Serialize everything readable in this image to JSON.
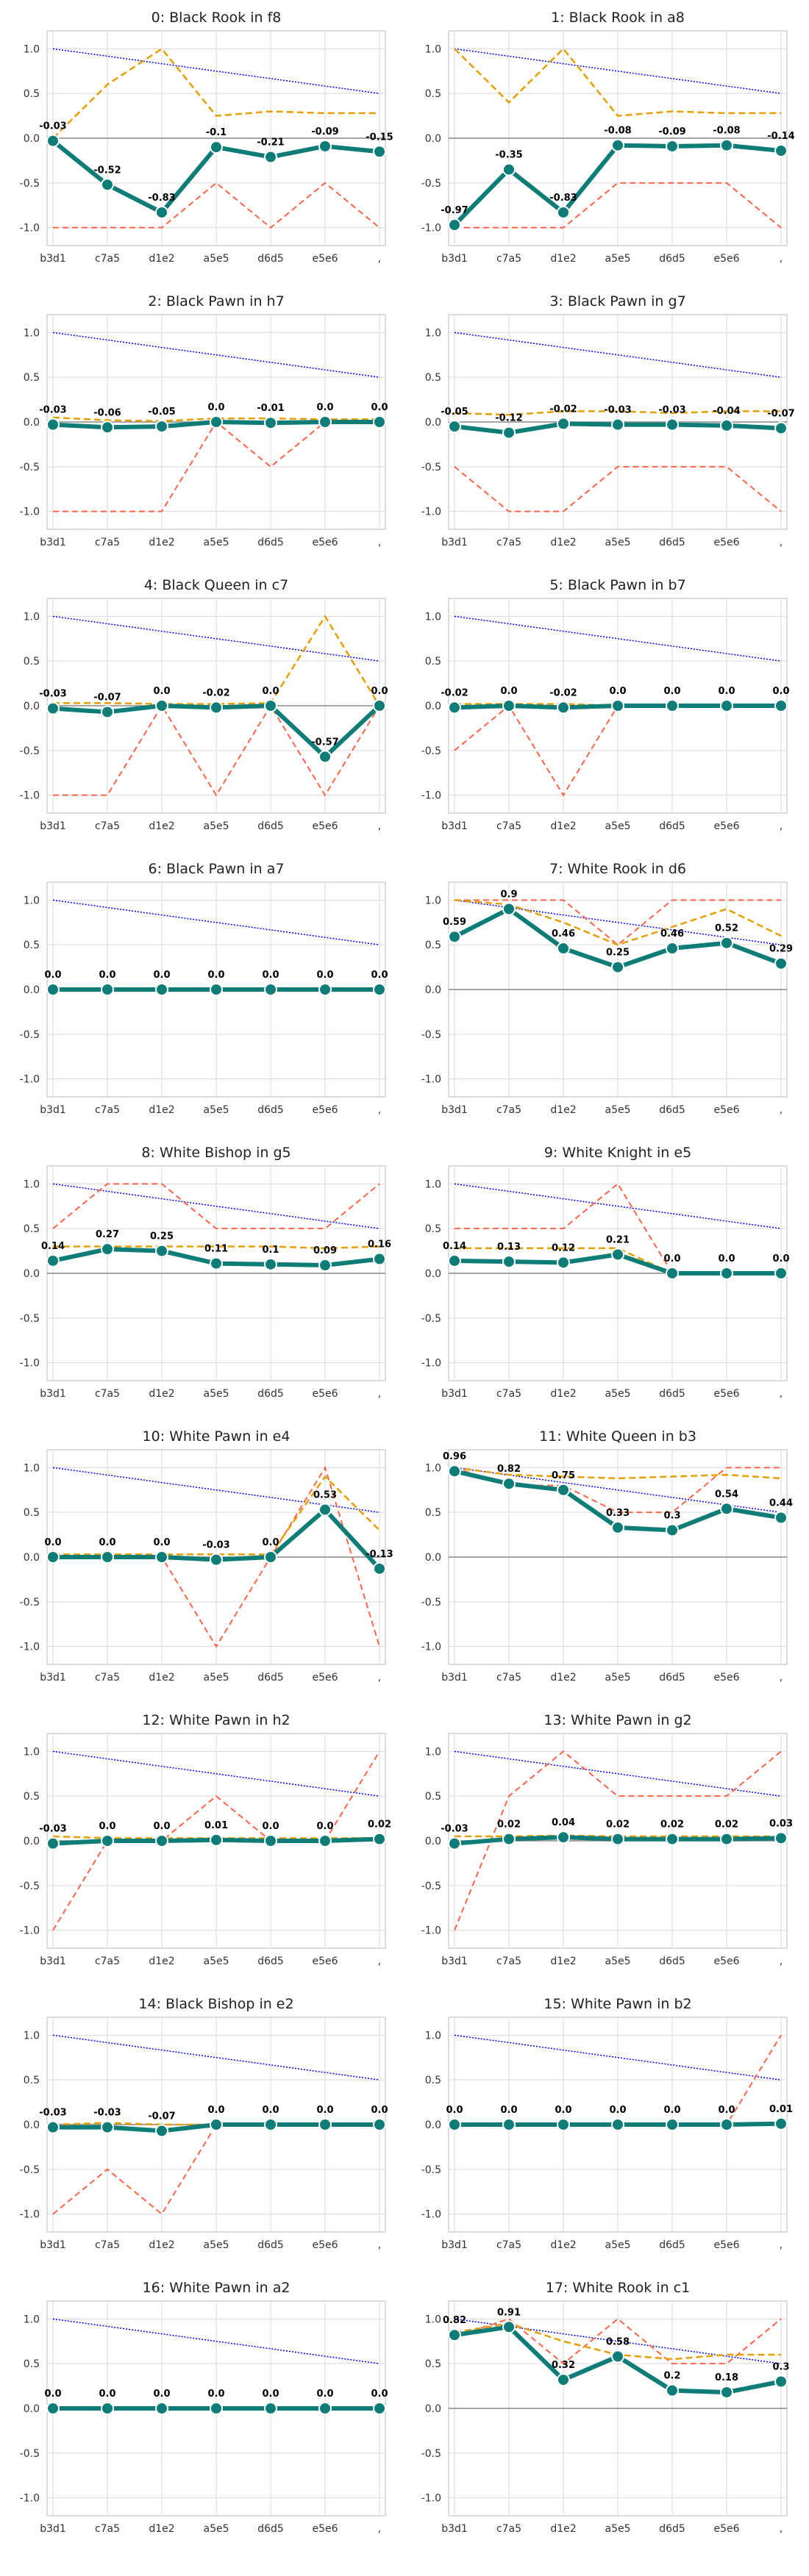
{
  "chart_data": {
    "type": "line",
    "x_labels": [
      "b3d1",
      "c7a5",
      "d1e2",
      "a5e5",
      "d6d5",
      "e5e6",
      ","
    ],
    "ylim": [
      -1.2,
      1.2
    ],
    "yticks": [
      "1.0",
      "0.5",
      "0.0",
      "-0.5",
      "-1.0"
    ],
    "ytick_values": [
      1.0,
      0.5,
      0.0,
      -0.5,
      -1.0
    ],
    "grid": true,
    "colors": {
      "main": "#0f7d77",
      "orange": "#e69f00",
      "red": "#ff6347",
      "blue": "#0000ff",
      "zero": "#888888",
      "grid": "#d9d9d9"
    },
    "panels": [
      {
        "title": "0: Black Rook in f8",
        "main": [
          -0.03,
          -0.52,
          -0.83,
          -0.1,
          -0.21,
          -0.09,
          -0.15
        ],
        "labels": [
          "-0.03",
          "-0.52",
          "-0.83",
          "-0.1",
          "-0.21",
          "-0.09",
          "-0.15"
        ],
        "orange": [
          0.0,
          0.6,
          1.0,
          0.25,
          0.3,
          0.28,
          0.28
        ],
        "red": [
          -1,
          -1,
          -1,
          -0.5,
          -1,
          -0.5,
          -1
        ],
        "blue": [
          1.0,
          0.917,
          0.833,
          0.75,
          0.667,
          0.583,
          0.5
        ]
      },
      {
        "title": "1: Black Rook in a8",
        "main": [
          -0.97,
          -0.35,
          -0.83,
          -0.08,
          -0.09,
          -0.08,
          -0.14
        ],
        "labels": [
          "-0.97",
          "-0.35",
          "-0.83",
          "-0.08",
          "-0.09",
          "-0.08",
          "-0.14"
        ],
        "orange": [
          1.0,
          0.4,
          1.0,
          0.25,
          0.3,
          0.28,
          0.28
        ],
        "red": [
          -1,
          -1,
          -1,
          -0.5,
          -0.5,
          -0.5,
          -1
        ],
        "blue": [
          1.0,
          0.917,
          0.833,
          0.75,
          0.667,
          0.583,
          0.5
        ]
      },
      {
        "title": "2: Black Pawn in h7",
        "main": [
          -0.03,
          -0.06,
          -0.05,
          0.0,
          -0.01,
          0.0,
          0.0
        ],
        "labels": [
          "-0.03",
          "-0.06",
          "-0.05",
          "0.0",
          "-0.01",
          "0.0",
          "0.0"
        ],
        "orange": [
          0.05,
          0.02,
          0.01,
          0.04,
          0.04,
          0.03,
          0.03
        ],
        "red": [
          -1,
          -1,
          -1,
          0,
          -0.5,
          0,
          0
        ],
        "blue": [
          1.0,
          0.917,
          0.833,
          0.75,
          0.667,
          0.583,
          0.5
        ]
      },
      {
        "title": "3: Black Pawn in g7",
        "main": [
          -0.05,
          -0.12,
          -0.02,
          -0.03,
          -0.03,
          -0.04,
          -0.07
        ],
        "labels": [
          "-0.05",
          "-0.12",
          "-0.02",
          "-0.03",
          "-0.03",
          "-0.04",
          "-0.07"
        ],
        "orange": [
          0.1,
          0.08,
          0.12,
          0.12,
          0.1,
          0.12,
          0.12
        ],
        "red": [
          -0.5,
          -1,
          -1,
          -0.5,
          -0.5,
          -0.5,
          -1
        ],
        "blue": [
          1.0,
          0.917,
          0.833,
          0.75,
          0.667,
          0.583,
          0.5
        ]
      },
      {
        "title": "4: Black Queen in c7",
        "main": [
          -0.03,
          -0.07,
          0.0,
          -0.02,
          0.0,
          -0.57,
          0.0
        ],
        "labels": [
          "-0.03",
          "-0.07",
          "0.0",
          "-0.02",
          "0.0",
          "-0.57",
          "0.0"
        ],
        "orange": [
          0.03,
          0.03,
          0.02,
          0.02,
          0.03,
          1.0,
          0.0
        ],
        "red": [
          -1,
          -1,
          0,
          -1,
          0,
          -1,
          0
        ],
        "blue": [
          1.0,
          0.917,
          0.833,
          0.75,
          0.667,
          0.583,
          0.5
        ]
      },
      {
        "title": "5: Black Pawn in b7",
        "main": [
          -0.02,
          0.0,
          -0.02,
          0.0,
          0.0,
          0.0,
          0.0
        ],
        "labels": [
          "-0.02",
          "0.0",
          "-0.02",
          "0.0",
          "0.0",
          "0.0",
          "0.0"
        ],
        "orange": [
          0.02,
          0.02,
          0.02,
          0.0,
          0.0,
          0.0,
          0.0
        ],
        "red": [
          -0.5,
          0,
          -1,
          0,
          0,
          0,
          0
        ],
        "blue": [
          1.0,
          0.917,
          0.833,
          0.75,
          0.667,
          0.583,
          0.5
        ]
      },
      {
        "title": "6: Black Pawn in a7",
        "main": [
          0.0,
          0.0,
          0.0,
          0.0,
          0.0,
          0.0,
          0.0
        ],
        "labels": [
          "0.0",
          "0.0",
          "0.0",
          "0.0",
          "0.0",
          "0.0",
          "0.0"
        ],
        "orange": [
          0.0,
          0.0,
          0.0,
          0.0,
          0.0,
          0.0,
          0.0
        ],
        "red": [
          0,
          0,
          0,
          0,
          0,
          0,
          0
        ],
        "blue": [
          1.0,
          0.917,
          0.833,
          0.75,
          0.667,
          0.583,
          0.5
        ]
      },
      {
        "title": "7: White Rook in d6",
        "main": [
          0.59,
          0.9,
          0.46,
          0.25,
          0.46,
          0.52,
          0.29
        ],
        "labels": [
          "0.59",
          "0.9",
          "0.46",
          "0.25",
          "0.46",
          "0.52",
          "0.29"
        ],
        "orange": [
          1.0,
          0.95,
          0.75,
          0.5,
          0.7,
          0.9,
          0.6
        ],
        "red": [
          1,
          1,
          1,
          0.5,
          1,
          1,
          1
        ],
        "blue": [
          1.0,
          0.917,
          0.833,
          0.75,
          0.667,
          0.583,
          0.5
        ]
      },
      {
        "title": "8: White Bishop in g5",
        "main": [
          0.14,
          0.27,
          0.25,
          0.11,
          0.1,
          0.09,
          0.16
        ],
        "labels": [
          "0.14",
          "0.27",
          "0.25",
          "0.11",
          "0.1",
          "0.09",
          "0.16"
        ],
        "orange": [
          0.3,
          0.3,
          0.3,
          0.3,
          0.3,
          0.28,
          0.3
        ],
        "red": [
          0.5,
          1,
          1,
          0.5,
          0.5,
          0.5,
          1
        ],
        "blue": [
          1.0,
          0.917,
          0.833,
          0.75,
          0.667,
          0.583,
          0.5
        ]
      },
      {
        "title": "9: White Knight in e5",
        "main": [
          0.14,
          0.13,
          0.12,
          0.21,
          0.0,
          0.0,
          0.0
        ],
        "labels": [
          "0.14",
          "0.13",
          "0.12",
          "0.21",
          "0.0",
          "0.0",
          "0.0"
        ],
        "orange": [
          0.28,
          0.28,
          0.28,
          0.28,
          0.0,
          0.0,
          0.0
        ],
        "red": [
          0.5,
          0.5,
          0.5,
          1,
          0,
          0,
          0
        ],
        "blue": [
          1.0,
          0.917,
          0.833,
          0.75,
          0.667,
          0.583,
          0.5
        ]
      },
      {
        "title": "10: White Pawn in e4",
        "main": [
          0.0,
          0.0,
          0.0,
          -0.03,
          0.0,
          0.53,
          -0.13
        ],
        "labels": [
          "0.0",
          "0.0",
          "0.0",
          "-0.03",
          "0.0",
          "0.53",
          "-0.13"
        ],
        "orange": [
          0.03,
          0.03,
          0.03,
          0.03,
          0.03,
          0.9,
          0.3
        ],
        "red": [
          0,
          0,
          0,
          -1,
          0,
          1,
          -1
        ],
        "blue": [
          1.0,
          0.917,
          0.833,
          0.75,
          0.667,
          0.583,
          0.5
        ]
      },
      {
        "title": "11: White Queen in b3",
        "main": [
          0.96,
          0.82,
          0.75,
          0.33,
          0.3,
          0.54,
          0.44
        ],
        "labels": [
          "0.96",
          "0.82",
          "0.75",
          "0.33",
          "0.3",
          "0.54",
          "0.44"
        ],
        "orange": [
          1.0,
          0.92,
          0.9,
          0.88,
          0.9,
          0.92,
          0.88
        ],
        "red": [
          1,
          0.8,
          0.8,
          0.5,
          0.5,
          1,
          1
        ],
        "blue": [
          1.0,
          0.917,
          0.833,
          0.75,
          0.667,
          0.583,
          0.5
        ]
      },
      {
        "title": "12: White Pawn in h2",
        "main": [
          -0.03,
          0.0,
          0.0,
          0.01,
          0.0,
          0.0,
          0.02
        ],
        "labels": [
          "-0.03",
          "0.0",
          "0.0",
          "0.01",
          "0.0",
          "0.0",
          "0.02"
        ],
        "orange": [
          0.05,
          0.03,
          0.03,
          0.03,
          0.03,
          0.03,
          0.03
        ],
        "red": [
          -1,
          0,
          0,
          0.5,
          0,
          0,
          1
        ],
        "blue": [
          1.0,
          0.917,
          0.833,
          0.75,
          0.667,
          0.583,
          0.5
        ]
      },
      {
        "title": "13: White Pawn in g2",
        "main": [
          -0.03,
          0.02,
          0.04,
          0.02,
          0.02,
          0.02,
          0.03
        ],
        "labels": [
          "-0.03",
          "0.02",
          "0.04",
          "0.02",
          "0.02",
          "0.02",
          "0.03"
        ],
        "orange": [
          0.05,
          0.05,
          0.06,
          0.05,
          0.05,
          0.05,
          0.05
        ],
        "red": [
          -1,
          0.5,
          1,
          0.5,
          0.5,
          0.5,
          1
        ],
        "blue": [
          1.0,
          0.917,
          0.833,
          0.75,
          0.667,
          0.583,
          0.5
        ]
      },
      {
        "title": "14: Black Bishop in e2",
        "main": [
          -0.03,
          -0.03,
          -0.07,
          0.0,
          0.0,
          0.0,
          0.0
        ],
        "labels": [
          "-0.03",
          "-0.03",
          "-0.07",
          "0.0",
          "0.0",
          "0.0",
          "0.0"
        ],
        "orange": [
          0.0,
          0.02,
          0.0,
          0.0,
          0.0,
          0.0,
          0.0
        ],
        "red": [
          -1,
          -0.5,
          -1,
          0,
          0,
          0,
          0
        ],
        "blue": [
          1.0,
          0.917,
          0.833,
          0.75,
          0.667,
          0.583,
          0.5
        ]
      },
      {
        "title": "15: White Pawn in b2",
        "main": [
          0.0,
          0.0,
          0.0,
          0.0,
          0.0,
          0.0,
          0.01
        ],
        "labels": [
          "0.0",
          "0.0",
          "0.0",
          "0.0",
          "0.0",
          "0.0",
          "0.01"
        ],
        "orange": [
          0.0,
          0.0,
          0.0,
          0.0,
          0.0,
          0.0,
          0.0
        ],
        "red": [
          0,
          0,
          0,
          0,
          0,
          0,
          1
        ],
        "blue": [
          1.0,
          0.917,
          0.833,
          0.75,
          0.667,
          0.583,
          0.5
        ]
      },
      {
        "title": "16: White Pawn in a2",
        "main": [
          0.0,
          0.0,
          0.0,
          0.0,
          0.0,
          0.0,
          0.0
        ],
        "labels": [
          "0.0",
          "0.0",
          "0.0",
          "0.0",
          "0.0",
          "0.0",
          "0.0"
        ],
        "orange": [
          0.0,
          0.0,
          0.0,
          0.0,
          0.0,
          0.0,
          0.0
        ],
        "red": [
          0,
          0,
          0,
          0,
          0,
          0,
          0
        ],
        "blue": [
          1.0,
          0.917,
          0.833,
          0.75,
          0.667,
          0.583,
          0.5
        ]
      },
      {
        "title": "17: White Rook in c1",
        "main": [
          0.82,
          0.91,
          0.32,
          0.58,
          0.2,
          0.18,
          0.3
        ],
        "labels": [
          "0.82",
          "0.91",
          "0.32",
          "0.58",
          "0.2",
          "0.18",
          "0.3"
        ],
        "orange": [
          0.85,
          0.95,
          0.75,
          0.6,
          0.55,
          0.6,
          0.6
        ],
        "red": [
          0.8,
          1,
          0.5,
          1,
          0.5,
          0.5,
          1
        ],
        "blue": [
          1.0,
          0.917,
          0.833,
          0.75,
          0.667,
          0.583,
          0.5
        ]
      }
    ]
  }
}
